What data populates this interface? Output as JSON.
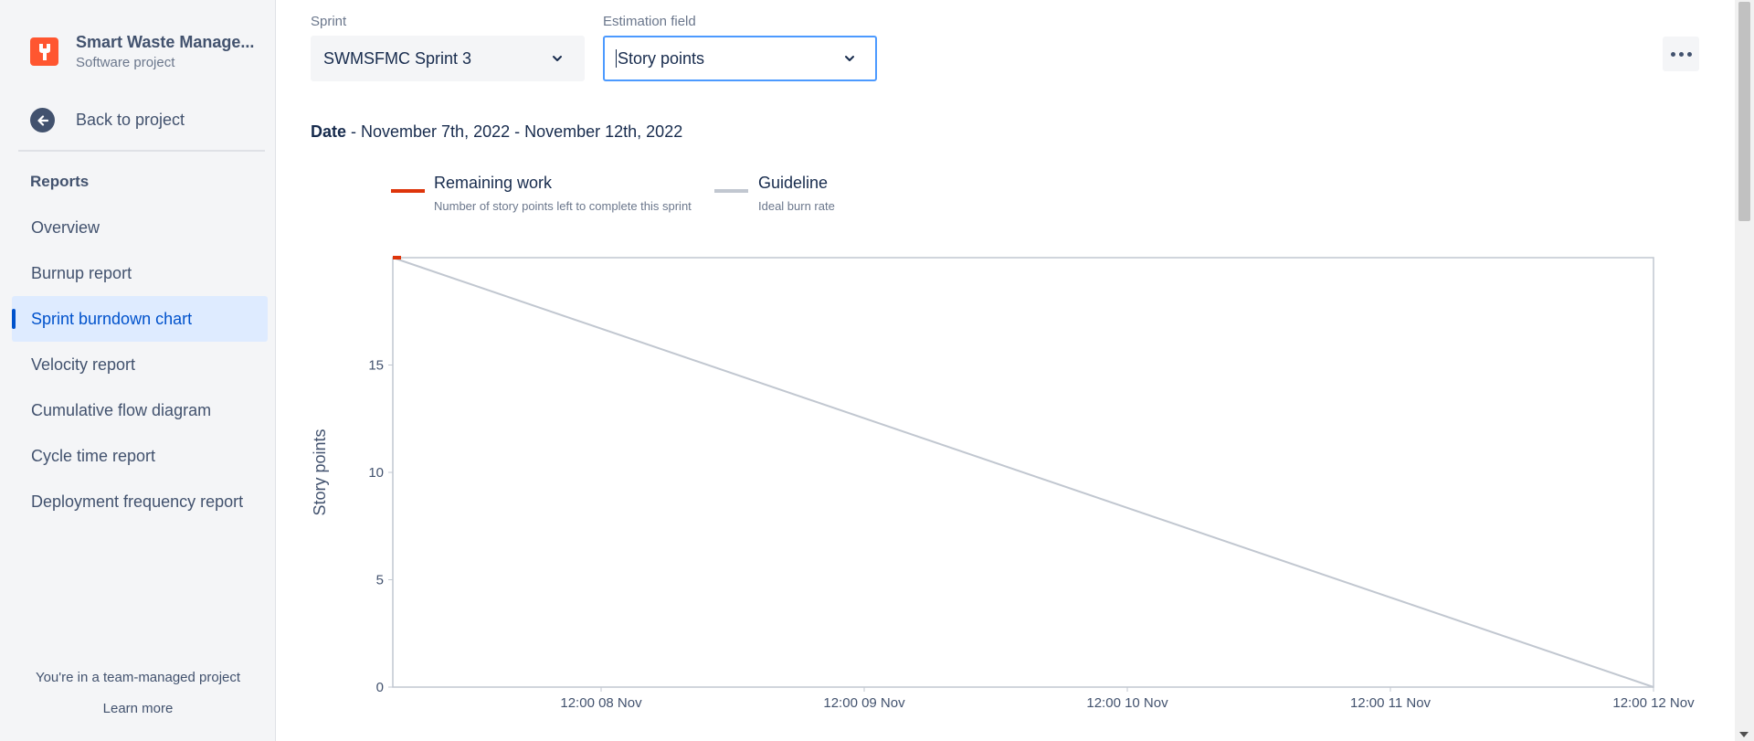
{
  "project": {
    "name": "Smart Waste Manage...",
    "type": "Software project",
    "brand_color": "#ff5630"
  },
  "sidebar": {
    "back_label": "Back to project",
    "section_heading": "Reports",
    "items": [
      {
        "label": "Overview",
        "active": false
      },
      {
        "label": "Burnup report",
        "active": false
      },
      {
        "label": "Sprint burndown chart",
        "active": true
      },
      {
        "label": "Velocity report",
        "active": false
      },
      {
        "label": "Cumulative flow diagram",
        "active": false
      },
      {
        "label": "Cycle time report",
        "active": false
      },
      {
        "label": "Deployment frequency report",
        "active": false
      }
    ],
    "footer_text": "You're in a team-managed project",
    "footer_link": "Learn more"
  },
  "filters": {
    "sprint_label": "Sprint",
    "sprint_value": "SWMSFMC Sprint 3",
    "estimation_label": "Estimation field",
    "estimation_value": "Story points"
  },
  "date": {
    "label": "Date",
    "range": " - November 7th, 2022 - November 12th, 2022"
  },
  "legend": [
    {
      "title": "Remaining work",
      "description": "Number of story points left to complete this sprint",
      "color": "#de350b"
    },
    {
      "title": "Guideline",
      "description": "Ideal burn rate",
      "color": "#c1c7d0"
    }
  ],
  "chart_data": {
    "type": "line",
    "ylabel": "Story points",
    "ylim": [
      0,
      20
    ],
    "yticks": [
      0,
      5,
      10,
      15
    ],
    "xlim": [
      "2022-11-07T17:00",
      "2022-11-12T12:00"
    ],
    "xticks": [
      {
        "label": "12:00 08 Nov",
        "value": "2022-11-08T12:00"
      },
      {
        "label": "12:00 09 Nov",
        "value": "2022-11-09T12:00"
      },
      {
        "label": "12:00 10 Nov",
        "value": "2022-11-10T12:00"
      },
      {
        "label": "12:00 11 Nov",
        "value": "2022-11-11T12:00"
      },
      {
        "label": "12:00 12 Nov",
        "value": "2022-11-12T12:00"
      }
    ],
    "series": [
      {
        "name": "Remaining work",
        "color": "#de350b",
        "points": [
          [
            "2022-11-07T17:00",
            20
          ],
          [
            "2022-11-07T17:45",
            20
          ]
        ]
      },
      {
        "name": "Guideline",
        "color": "#c1c7d0",
        "points": [
          [
            "2022-11-07T17:00",
            20
          ],
          [
            "2022-11-12T12:00",
            0
          ]
        ]
      }
    ],
    "grid": false
  }
}
